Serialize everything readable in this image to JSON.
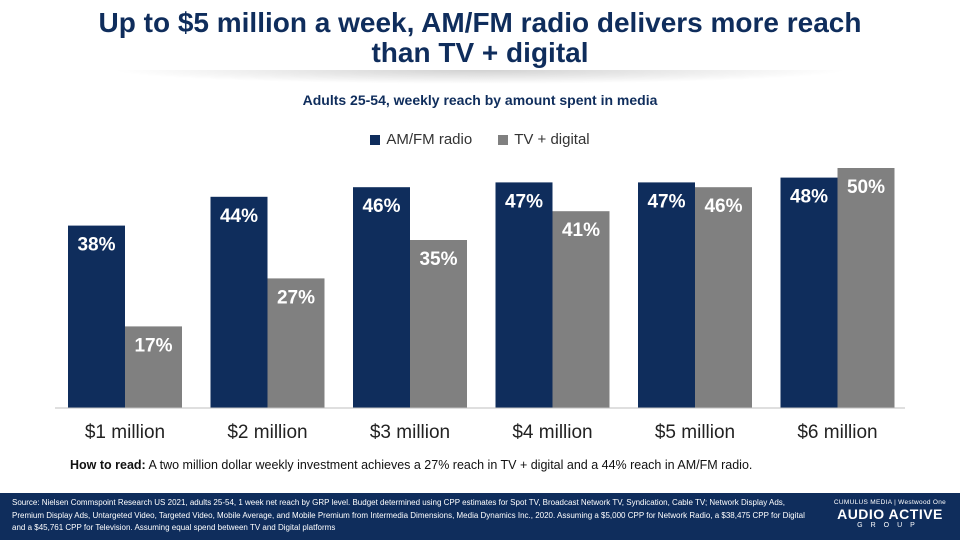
{
  "header": {
    "title_line1": "Up to $5 million a week, AM/FM radio delivers more reach",
    "title_line2": "than TV + digital",
    "subtitle": "Adults 25-54, weekly reach by amount spent in media"
  },
  "legend": [
    {
      "label": "AM/FM radio",
      "color": "#0f2d5c"
    },
    {
      "label": "TV + digital",
      "color": "#808080"
    }
  ],
  "chart_data": {
    "type": "bar",
    "title": "Up to $5 million a week, AM/FM radio delivers more reach than TV + digital",
    "subtitle": "Adults 25-54, weekly reach by amount spent in media",
    "categories": [
      "$1 million",
      "$2 million",
      "$3 million",
      "$4 million",
      "$5 million",
      "$6 million"
    ],
    "series": [
      {
        "name": "AM/FM radio",
        "values": [
          38,
          44,
          46,
          47,
          47,
          48
        ],
        "labels": [
          "38%",
          "44%",
          "46%",
          "47%",
          "47%",
          "48%"
        ],
        "color": "#0f2d5c"
      },
      {
        "name": "TV + digital",
        "values": [
          17,
          27,
          35,
          41,
          46,
          50
        ],
        "labels": [
          "17%",
          "27%",
          "35%",
          "41%",
          "46%",
          "50%"
        ],
        "color": "#808080"
      }
    ],
    "ylim": [
      0,
      50
    ],
    "grid": false,
    "legend_position": "top"
  },
  "how_to_read": {
    "lead": "How to read:",
    "text": " A two million dollar weekly investment achieves a 27% reach in TV  + digital and a 44% reach in AM/FM radio."
  },
  "footer": {
    "source": "Source:  Nielsen Commspoint  Research US 2021, adults 25-54, 1 week net reach by GRP level. Budget determined using CPP  estimates for Spot TV, Broadcast Network TV, Syndication, Cable TV; Network Display Ads, Premium Display Ads, Untargeted Video, Targeted Video, Mobile Average, and Mobile Premium  from Intermedia Dimensions, Media Dynamics Inc., 2020. Assuming a $5,000 CPP for Network Radio, a $38,475 CPP  for Digital and a $45,761  CPP for Television. Assuming equal spend between TV and Digital platforms",
    "logo_top": "CUMULUS MEDIA | Westwood One",
    "logo_main": "AUDIO ACTIVE",
    "logo_sub": "GROUP"
  }
}
